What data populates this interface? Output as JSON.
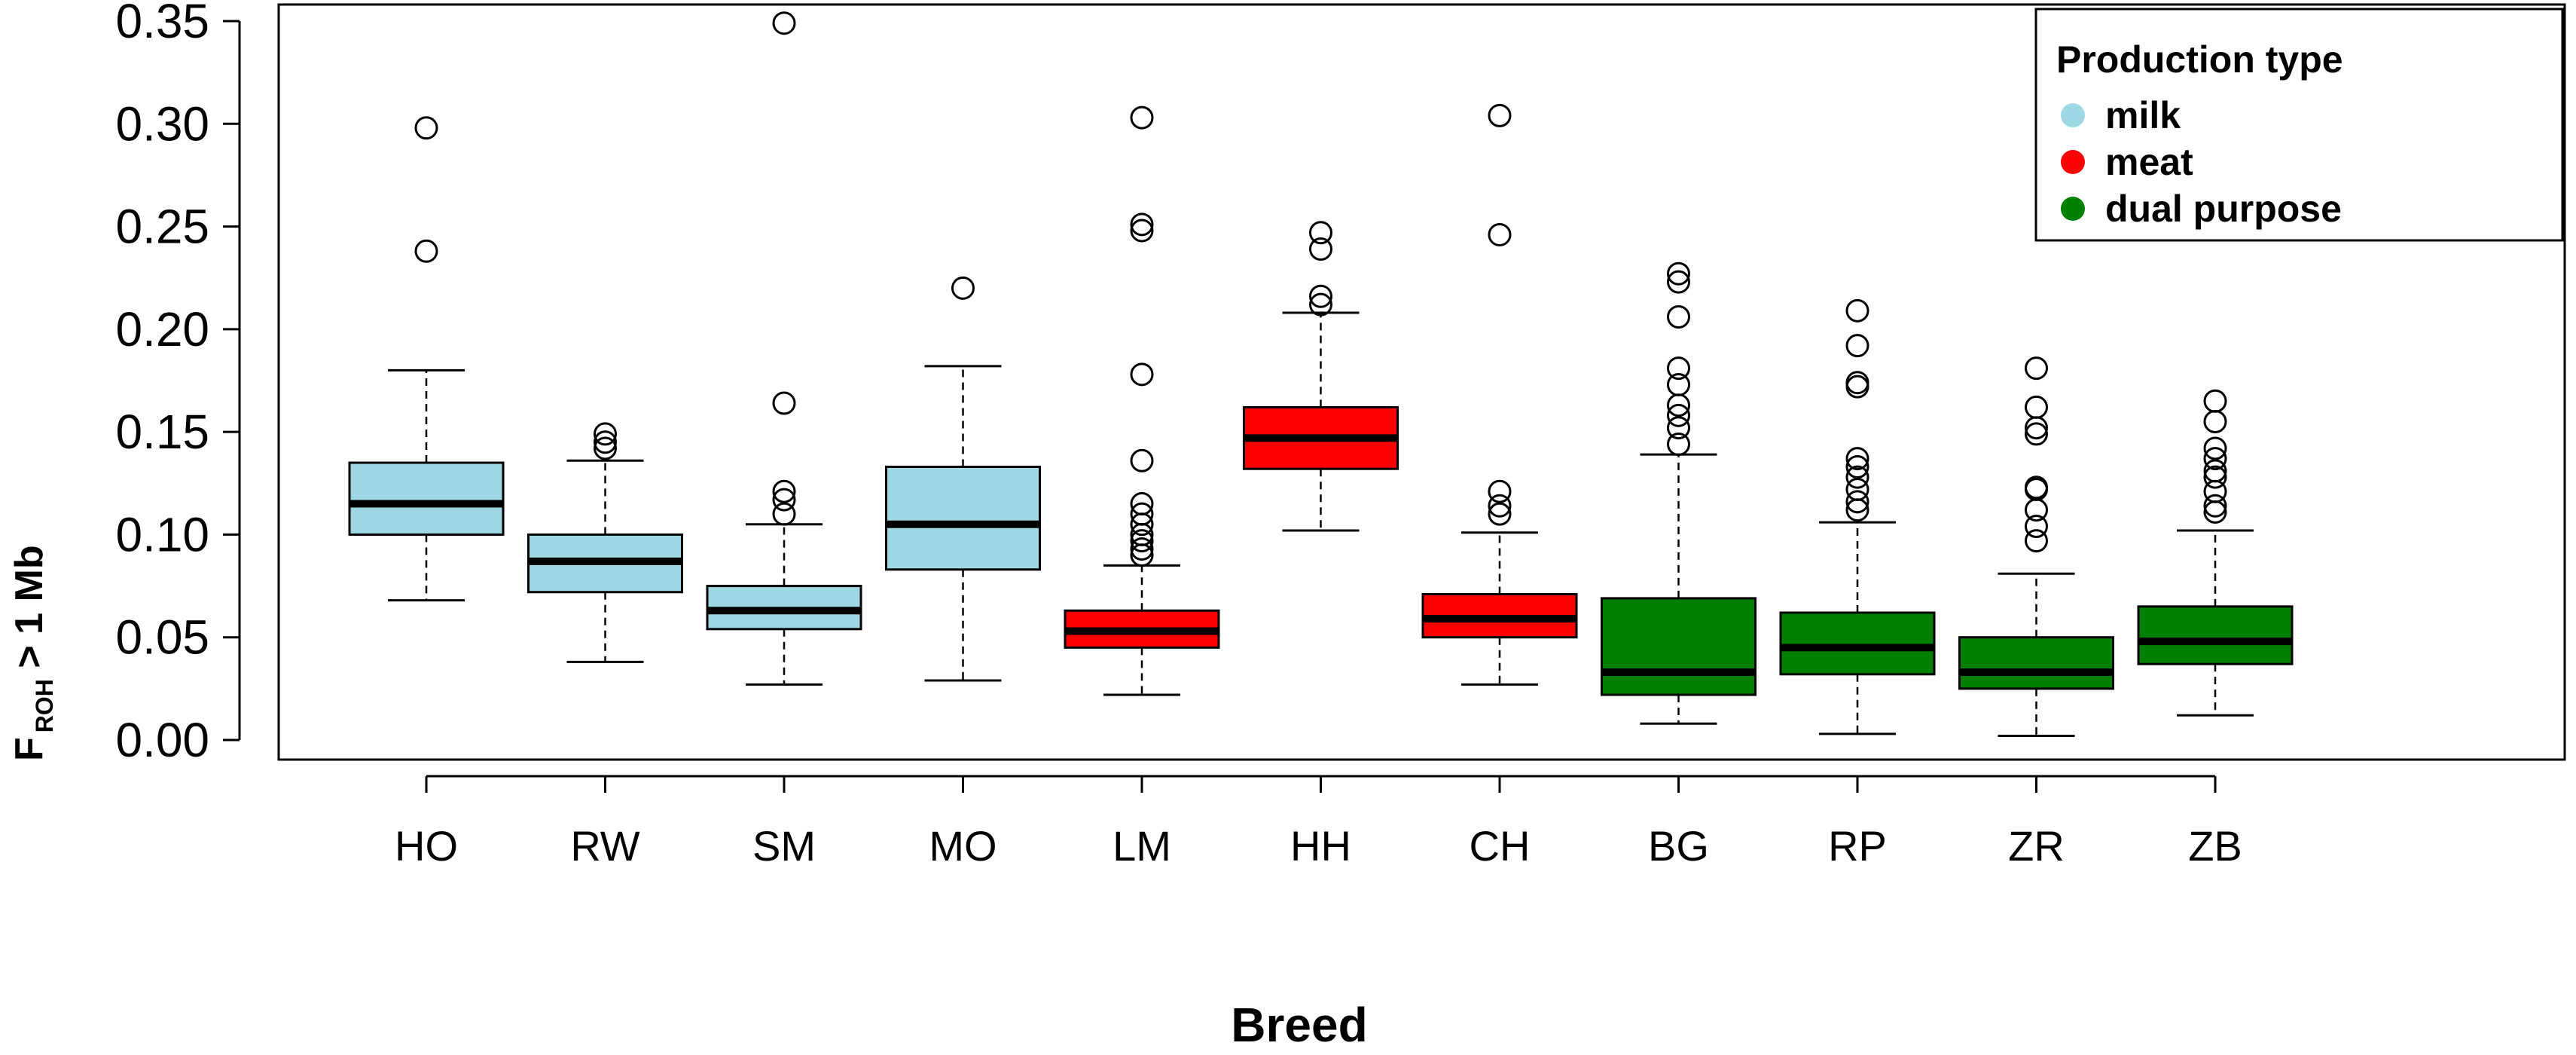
{
  "chart_data": {
    "type": "boxplot",
    "title": "",
    "xlabel": "Breed",
    "ylabel_main": "F",
    "ylabel_sub": "ROH",
    "ylabel_rest": " > 1 Mb",
    "ylim": [
      0.0,
      0.35
    ],
    "yticks": [
      "0.00",
      "0.05",
      "0.10",
      "0.15",
      "0.20",
      "0.25",
      "0.30",
      "0.35"
    ],
    "legend": {
      "title": "Production type",
      "position": "top-right",
      "entries": [
        {
          "label": "milk",
          "color": "#9fd8e5"
        },
        {
          "label": "meat",
          "color": "#ff0000"
        },
        {
          "label": "dual purpose",
          "color": "#008000"
        }
      ]
    },
    "boxes": [
      {
        "name": "HO",
        "type": "milk",
        "color": "#9fd8e5",
        "whisker_low": 0.068,
        "q1": 0.1,
        "median": 0.115,
        "q3": 0.135,
        "whisker_high": 0.18,
        "outliers": [
          0.238,
          0.298
        ]
      },
      {
        "name": "RW",
        "type": "milk",
        "color": "#9fd8e5",
        "whisker_low": 0.038,
        "q1": 0.072,
        "median": 0.087,
        "q3": 0.1,
        "whisker_high": 0.136,
        "outliers": [
          0.142,
          0.145,
          0.149
        ]
      },
      {
        "name": "SM",
        "type": "milk",
        "color": "#9fd8e5",
        "whisker_low": 0.027,
        "q1": 0.054,
        "median": 0.063,
        "q3": 0.075,
        "whisker_high": 0.105,
        "outliers": [
          0.11,
          0.117,
          0.121,
          0.164,
          0.349
        ]
      },
      {
        "name": "MO",
        "type": "milk",
        "color": "#9fd8e5",
        "whisker_low": 0.029,
        "q1": 0.083,
        "median": 0.105,
        "q3": 0.133,
        "whisker_high": 0.182,
        "outliers": [
          0.22
        ]
      },
      {
        "name": "LM",
        "type": "meat",
        "color": "#ff0000",
        "whisker_low": 0.022,
        "q1": 0.045,
        "median": 0.053,
        "q3": 0.063,
        "whisker_high": 0.085,
        "outliers": [
          0.09,
          0.093,
          0.097,
          0.1,
          0.105,
          0.11,
          0.115,
          0.136,
          0.178,
          0.248,
          0.251,
          0.303
        ]
      },
      {
        "name": "HH",
        "type": "meat",
        "color": "#ff0000",
        "whisker_low": 0.102,
        "q1": 0.132,
        "median": 0.147,
        "q3": 0.162,
        "whisker_high": 0.208,
        "outliers": [
          0.212,
          0.216,
          0.239,
          0.247
        ]
      },
      {
        "name": "CH",
        "type": "meat",
        "color": "#ff0000",
        "whisker_low": 0.027,
        "q1": 0.05,
        "median": 0.059,
        "q3": 0.071,
        "whisker_high": 0.101,
        "outliers": [
          0.11,
          0.114,
          0.121,
          0.246,
          0.304
        ]
      },
      {
        "name": "BG",
        "type": "dual purpose",
        "color": "#008000",
        "whisker_low": 0.008,
        "q1": 0.022,
        "median": 0.033,
        "q3": 0.069,
        "whisker_high": 0.139,
        "outliers": [
          0.144,
          0.152,
          0.158,
          0.163,
          0.173,
          0.181,
          0.206,
          0.223,
          0.227
        ]
      },
      {
        "name": "RP",
        "type": "dual purpose",
        "color": "#008000",
        "whisker_low": 0.003,
        "q1": 0.032,
        "median": 0.045,
        "q3": 0.062,
        "whisker_high": 0.106,
        "outliers": [
          0.112,
          0.116,
          0.122,
          0.128,
          0.133,
          0.137,
          0.172,
          0.174,
          0.192,
          0.209
        ]
      },
      {
        "name": "ZR",
        "type": "dual purpose",
        "color": "#008000",
        "whisker_low": 0.002,
        "q1": 0.025,
        "median": 0.033,
        "q3": 0.05,
        "whisker_high": 0.081,
        "outliers": [
          0.097,
          0.104,
          0.112,
          0.122,
          0.123,
          0.149,
          0.152,
          0.162,
          0.181
        ]
      },
      {
        "name": "ZB",
        "type": "dual purpose",
        "color": "#008000",
        "whisker_low": 0.012,
        "q1": 0.037,
        "median": 0.048,
        "q3": 0.065,
        "whisker_high": 0.102,
        "outliers": [
          0.111,
          0.114,
          0.121,
          0.128,
          0.131,
          0.137,
          0.142,
          0.155,
          0.165
        ]
      }
    ]
  }
}
